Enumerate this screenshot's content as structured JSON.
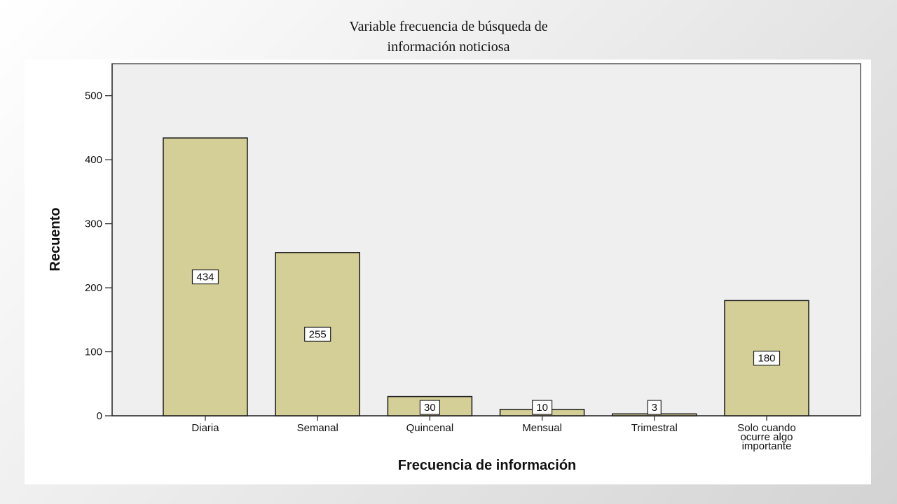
{
  "slide": {
    "title_line1": "Variable frecuencia de búsqueda de",
    "title_line2": "información noticiosa"
  },
  "chart_data": {
    "type": "bar",
    "categories": [
      "Diaria",
      "Semanal",
      "Quincenal",
      "Mensual",
      "Trimestral",
      "Solo cuando ocurre algo importante"
    ],
    "category_lines": [
      [
        "Diaria"
      ],
      [
        "Semanal"
      ],
      [
        "Quincenal"
      ],
      [
        "Mensual"
      ],
      [
        "Trimestral"
      ],
      [
        "Solo cuando",
        "ocurre algo",
        "importante"
      ]
    ],
    "values": [
      434,
      255,
      30,
      10,
      3,
      180
    ],
    "data_labels": [
      "434",
      "255",
      "30",
      "10",
      "3",
      "180"
    ],
    "title": "",
    "xlabel": "Frecuencia de información",
    "ylabel": "Recuento",
    "ylim": [
      0,
      550
    ],
    "yticks": [
      0,
      100,
      200,
      300,
      400,
      500
    ],
    "grid": false,
    "colors": {
      "bar": "#d4cf97",
      "bar_outline": "#1a1a1a",
      "plot_background": "#efefef"
    }
  }
}
